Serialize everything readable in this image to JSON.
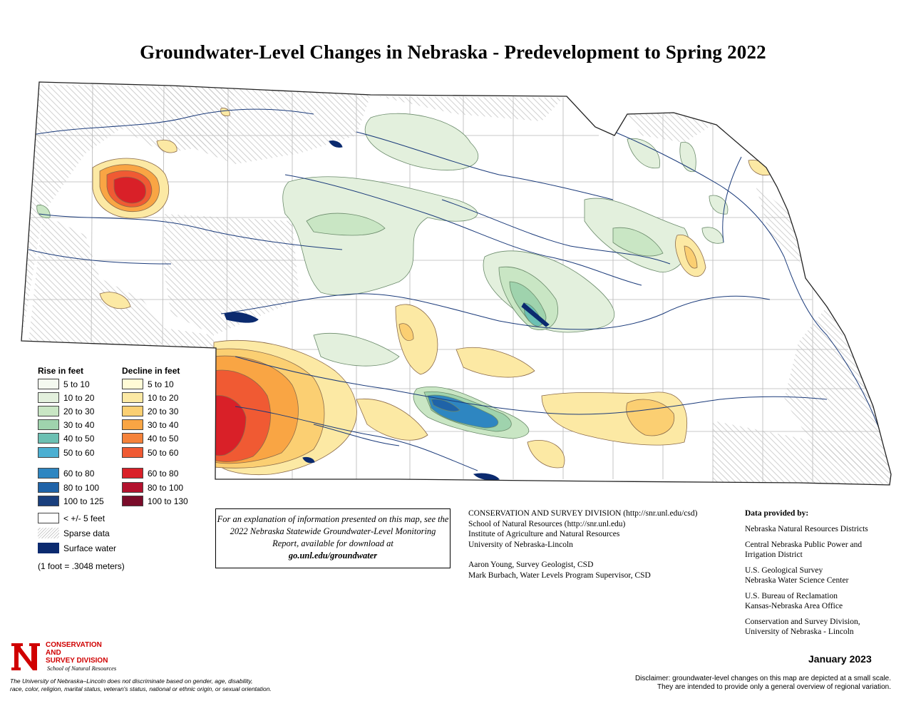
{
  "title": "Groundwater-Level Changes in Nebraska - Predevelopment to Spring 2022",
  "legend": {
    "rise_heading": "Rise in feet",
    "decline_heading": "Decline in feet",
    "rise": [
      {
        "label": "5 to 10",
        "color": "#f4f9f0"
      },
      {
        "label": "10 to 20",
        "color": "#e3f0dd"
      },
      {
        "label": "20 to 30",
        "color": "#c9e6c4"
      },
      {
        "label": "30 to 40",
        "color": "#9fd3ad"
      },
      {
        "label": "40 to 50",
        "color": "#6cc0b3"
      },
      {
        "label": "50 to 60",
        "color": "#4bafd2"
      },
      {
        "label": "60 to 80",
        "color": "#2e86c1"
      },
      {
        "label": "80 to 100",
        "color": "#1f63a8"
      },
      {
        "label": "100 to 125",
        "color": "#1a3f7d"
      }
    ],
    "decline": [
      {
        "label": "5 to 10",
        "color": "#fffbd6"
      },
      {
        "label": "10 to 20",
        "color": "#fce9a4"
      },
      {
        "label": "20 to 30",
        "color": "#fbcf72"
      },
      {
        "label": "30 to 40",
        "color": "#f9a544"
      },
      {
        "label": "40 to 50",
        "color": "#f5823a"
      },
      {
        "label": "50 to 60",
        "color": "#f05a33"
      },
      {
        "label": "60 to 80",
        "color": "#d92028"
      },
      {
        "label": "80 to 100",
        "color": "#b3122e"
      },
      {
        "label": "100 to 130",
        "color": "#7a0c2a"
      }
    ],
    "other": [
      {
        "label": "< +/- 5 feet",
        "type": "blank"
      },
      {
        "label": "Sparse data",
        "type": "hatch"
      },
      {
        "label": "Surface water",
        "type": "water",
        "color": "#0b2a6f"
      }
    ],
    "conversion": "(1 foot = .3048 meters)"
  },
  "infobox": {
    "text": "For an explanation of information presented on this map, see the 2022 Nebraska Statewide Groundwater-Level Monitoring Report, available for download at",
    "link": "go.unl.edu/groundwater"
  },
  "csd": {
    "line1": "CONSERVATION AND SURVEY DIVISION (http://snr.unl.edu/csd)",
    "line2": "School of Natural Resources (http://snr.unl.edu)",
    "line3": "Institute of Agriculture and Natural Resources",
    "line4": "University of Nebraska-Lincoln",
    "line5": "Aaron Young, Survey Geologist, CSD",
    "line6": "Mark Burbach, Water Levels Program Supervisor, CSD"
  },
  "provided": {
    "heading": "Data provided by:",
    "groups": [
      [
        "Nebraska Natural Resources Districts"
      ],
      [
        "Central Nebraska Public Power and",
        "Irrigation District"
      ],
      [
        "U.S. Geological Survey",
        "Nebraska Water Science Center"
      ],
      [
        "U.S. Bureau of Reclamation",
        "Kansas-Nebraska Area Office"
      ],
      [
        "Conservation and Survey Division,",
        "University of Nebraska - Lincoln"
      ]
    ]
  },
  "date": "January 2023",
  "disclaimer": {
    "line1": "Disclaimer: groundwater-level changes on this map are depicted at a small scale.",
    "line2": "They are intended to provide only a general overview of regional variation."
  },
  "logo": {
    "letter": "N",
    "line1": "CONSERVATION AND",
    "line2": "SURVEY DIVISION",
    "sub": "School of Natural Resources",
    "brand_color": "#d00000"
  },
  "nondiscrimination": {
    "line1": "The University of Nebraska–Lincoln does not discriminate based on gender, age, disability,",
    "line2": "race, color, religion, marital status, veteran's status, national or ethnic origin, or sexual orientation."
  },
  "colors": {
    "state_outline": "#222222",
    "county_lines": "#b5b5b5",
    "rivers": "#1a3a7a",
    "hatch": "#c9c9c9"
  }
}
